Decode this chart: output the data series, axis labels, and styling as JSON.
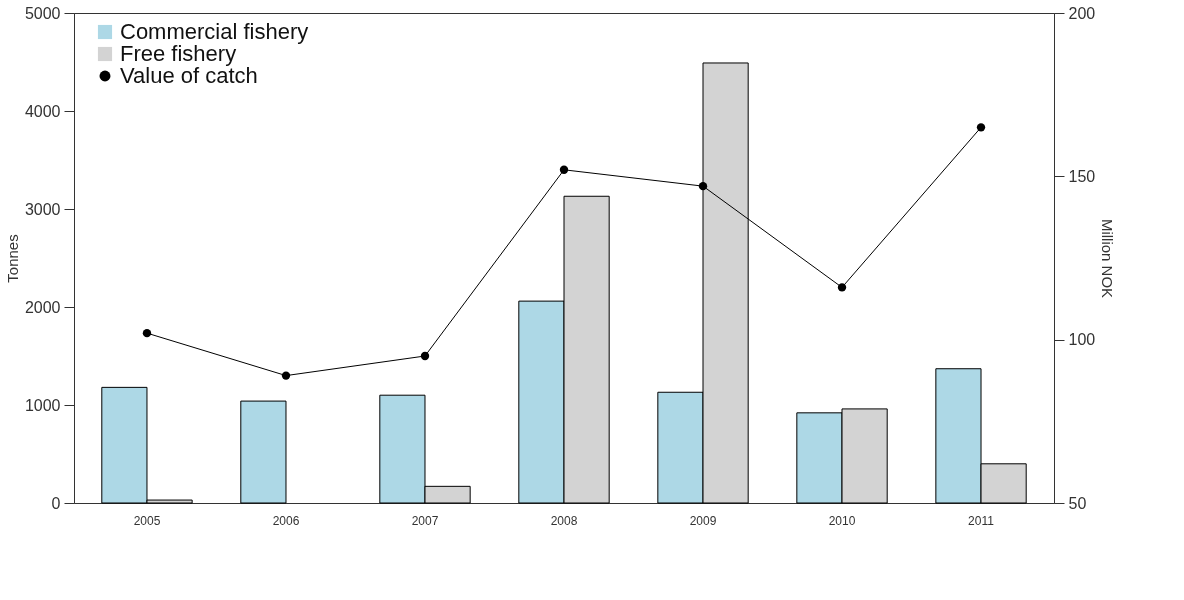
{
  "chart_data": {
    "type": "bar",
    "ylabel": "Tonnes",
    "y2label": "Million NOK",
    "categories": [
      "2005",
      "2006",
      "2007",
      "2008",
      "2009",
      "2010",
      "2011"
    ],
    "series": [
      {
        "name": "Commercial fishery",
        "color": "#add8e6",
        "values": [
          1180,
          1040,
          1100,
          2060,
          1130,
          920,
          1370
        ]
      },
      {
        "name": "Free fishery",
        "color": "#d3d3d3",
        "values": [
          30,
          null,
          170,
          3130,
          4490,
          960,
          400
        ]
      },
      {
        "name": "Value of catch",
        "type": "line",
        "axis": "y2",
        "color": "#000000",
        "values": [
          102,
          89,
          95,
          152,
          147,
          116,
          165
        ]
      }
    ],
    "ylim": [
      0,
      5000
    ],
    "yticks": [
      0,
      1000,
      2000,
      3000,
      4000,
      5000
    ],
    "y2lim": [
      50,
      200
    ],
    "y2ticks": [
      50,
      100,
      150,
      200
    ],
    "legend": "top left",
    "grid": false,
    "marker": "circle"
  }
}
